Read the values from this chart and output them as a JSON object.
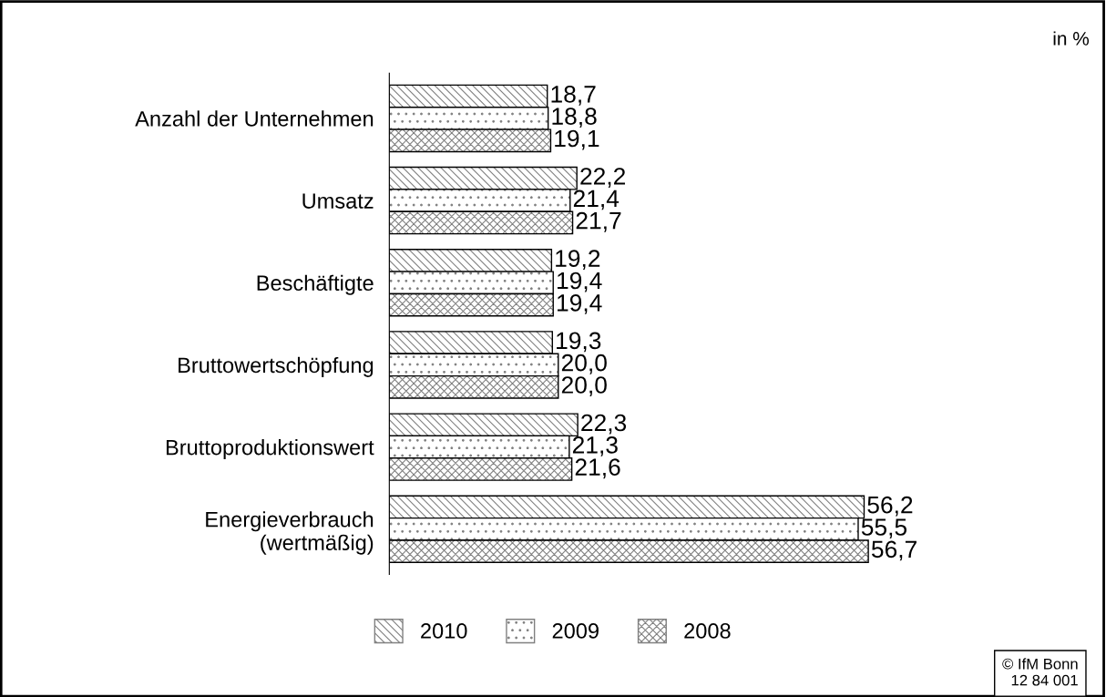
{
  "chart_data": {
    "type": "bar",
    "orientation": "horizontal",
    "categories": [
      "Anzahl der Unternehmen",
      "Umsatz",
      "Beschäftigte",
      "Bruttowertschöpfung",
      "Bruttoproduktionswert",
      "Energieverbrauch\n(wertmäßig)"
    ],
    "series": [
      {
        "name": "2010",
        "color": "#808080",
        "values": [
          18.7,
          22.2,
          19.2,
          19.3,
          22.3,
          56.2
        ],
        "value_labels": [
          "18,7",
          "22,2",
          "19,2",
          "19,3",
          "22,3",
          "56,2"
        ]
      },
      {
        "name": "2009",
        "color": "#808080",
        "values": [
          18.8,
          21.4,
          19.4,
          20.0,
          21.3,
          55.5
        ],
        "value_labels": [
          "18,8",
          "21,4",
          "19,4",
          "20,0",
          "21,3",
          "55,5"
        ]
      },
      {
        "name": "2008",
        "color": "#808080",
        "values": [
          19.1,
          21.7,
          19.4,
          20.0,
          21.6,
          56.7
        ],
        "value_labels": [
          "19,1",
          "21,7",
          "19,4",
          "20,0",
          "21,6",
          "56,7"
        ]
      }
    ],
    "legend": "bottom",
    "grid": false,
    "annotations": [
      "in %",
      "© IfM Bonn\n12 84 001"
    ]
  }
}
